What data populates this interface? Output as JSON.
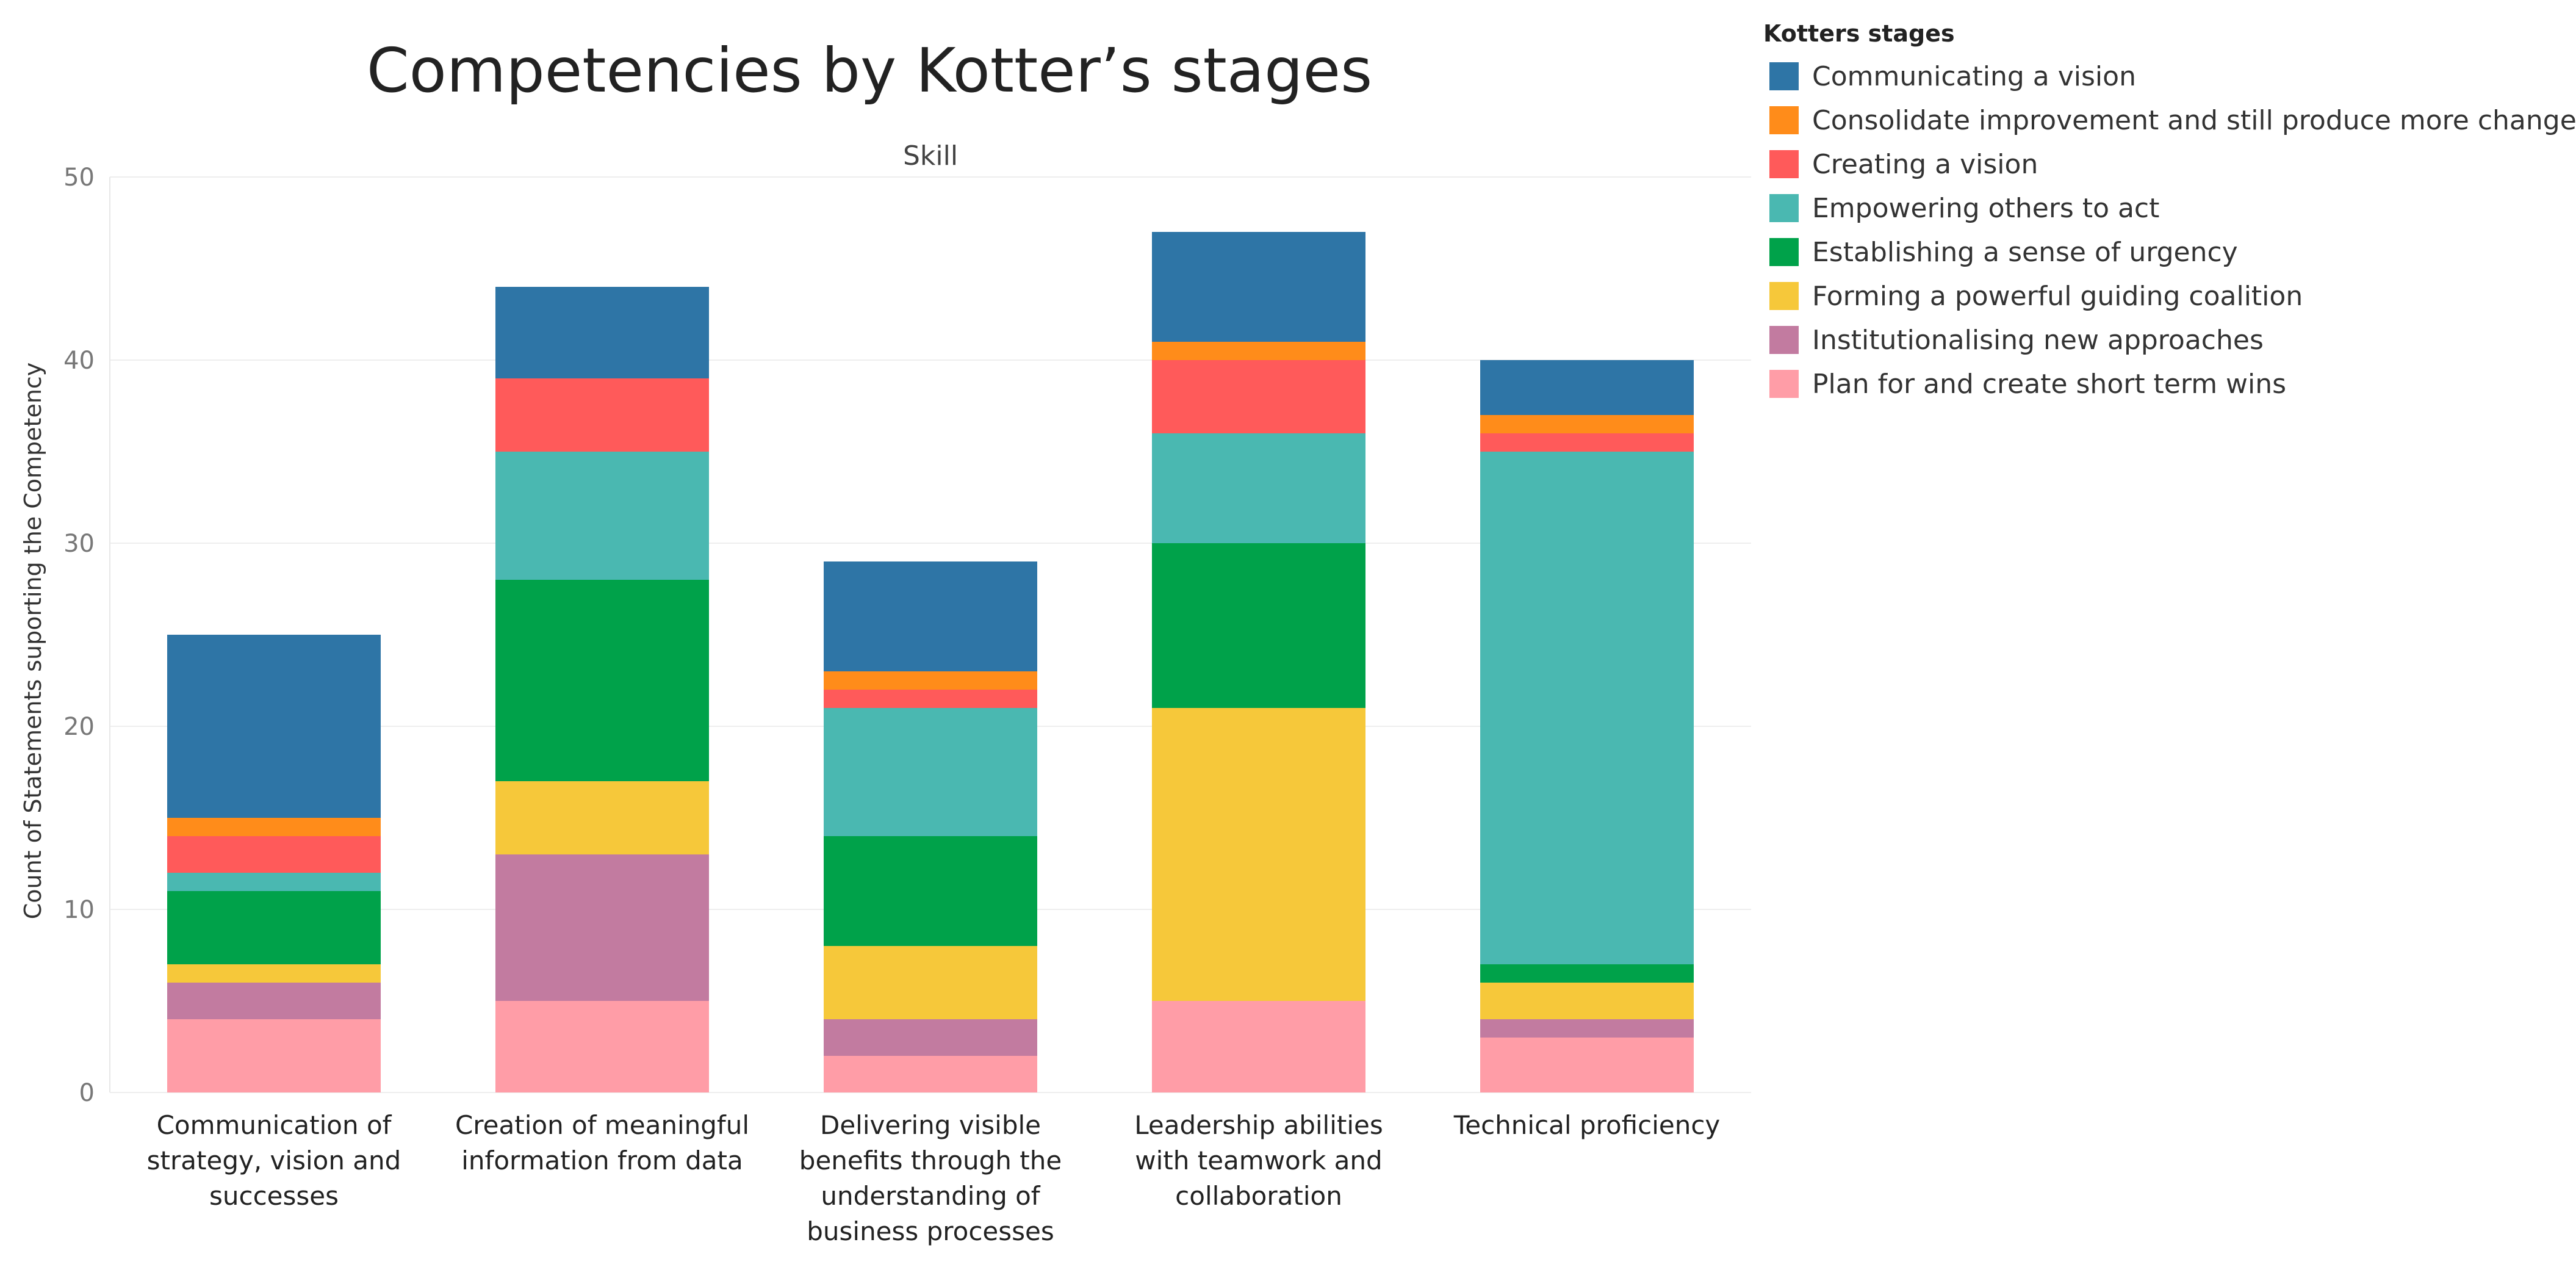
{
  "chart_data": {
    "type": "bar",
    "stacked": true,
    "title": "Competencies by Kotter’s stages",
    "facet_label": "Skill",
    "xlabel": "",
    "ylabel": "Count of Statements suporting the Competency",
    "ylim": [
      0,
      50
    ],
    "yticks": [
      0,
      10,
      20,
      30,
      40,
      50
    ],
    "grid": true,
    "legend_title": "Kotters stages",
    "legend_position": "right",
    "categories": [
      [
        "Communication of",
        "strategy, vision and",
        "successes"
      ],
      [
        "Creation of meaningful",
        "information from data"
      ],
      [
        "Delivering visible",
        "benefits through the",
        "understanding of",
        "business processes"
      ],
      [
        "Leadership abilities",
        "with teamwork and",
        "collaboration"
      ],
      [
        "Technical proficiency"
      ]
    ],
    "series": [
      {
        "name": "Plan for and create short term wins",
        "color": "#FF9DA7",
        "values": [
          4,
          5,
          2,
          5,
          3
        ]
      },
      {
        "name": "Institutionalising new approaches",
        "color": "#C27BA0",
        "values": [
          2,
          8,
          2,
          0,
          1
        ]
      },
      {
        "name": "Forming a powerful guiding coalition",
        "color": "#F6C83A",
        "values": [
          1,
          4,
          4,
          16,
          2
        ]
      },
      {
        "name": "Establishing a sense of urgency",
        "color": "#00A24A",
        "values": [
          4,
          11,
          6,
          9,
          1
        ]
      },
      {
        "name": "Empowering others to act",
        "color": "#4AB8B1",
        "values": [
          1,
          7,
          7,
          6,
          28
        ]
      },
      {
        "name": "Creating a vision",
        "color": "#FF5A5A",
        "values": [
          2,
          4,
          1,
          4,
          1
        ]
      },
      {
        "name": "Consolidate improvement and still produce more change",
        "color": "#FF8C1A",
        "values": [
          1,
          0,
          1,
          1,
          1
        ]
      },
      {
        "name": "Communicating a vision",
        "color": "#2E75A6",
        "values": [
          10,
          5,
          6,
          6,
          3
        ]
      }
    ],
    "legend_order": [
      "Communicating a vision",
      "Consolidate improvement and still produce more change",
      "Creating a vision",
      "Empowering others to act",
      "Establishing a sense of urgency",
      "Forming a powerful guiding coalition",
      "Institutionalising new approaches",
      "Plan for and create short term wins"
    ]
  }
}
